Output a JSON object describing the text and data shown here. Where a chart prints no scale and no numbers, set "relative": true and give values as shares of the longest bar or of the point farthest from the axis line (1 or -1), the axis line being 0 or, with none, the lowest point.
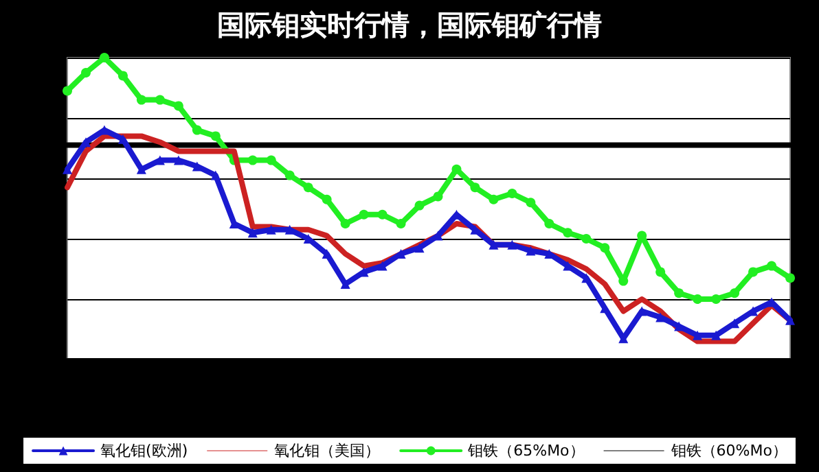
{
  "chart_data": {
    "type": "line",
    "title": "国际钼实时行情，国际钼矿行情",
    "relative": true,
    "grid": "y",
    "legend": "bottom",
    "categories": [
      null,
      null,
      null,
      null,
      null,
      null,
      null,
      null,
      null,
      null,
      null,
      null,
      null,
      null,
      null,
      null,
      null,
      null,
      null,
      null,
      null,
      null,
      null,
      null,
      null,
      null,
      null,
      null,
      null,
      null,
      null,
      null,
      null,
      null,
      null,
      null,
      null,
      null,
      null,
      null
    ],
    "series": [
      {
        "name": "氧化钼(欧洲)",
        "color": "#1a1ad0",
        "marker": "triangle",
        "values": [
          0.63,
          0.72,
          0.76,
          0.73,
          0.63,
          0.66,
          0.66,
          0.64,
          0.61,
          0.45,
          0.42,
          0.43,
          0.43,
          0.4,
          0.35,
          0.25,
          0.29,
          0.31,
          0.35,
          0.37,
          0.41,
          0.48,
          0.43,
          0.38,
          0.38,
          0.36,
          0.35,
          0.31,
          0.27,
          0.17,
          0.07,
          0.16,
          0.14,
          0.11,
          0.08,
          0.08,
          0.12,
          0.16,
          0.19,
          0.13
        ]
      },
      {
        "name": "氧化钼（美国）",
        "color": "#cc2222",
        "marker": "none",
        "values": [
          0.57,
          0.69,
          0.74,
          0.74,
          0.74,
          0.72,
          0.69,
          0.69,
          0.69,
          0.69,
          0.44,
          0.44,
          0.43,
          0.43,
          0.41,
          0.35,
          0.31,
          0.32,
          0.35,
          0.38,
          0.41,
          0.45,
          0.44,
          0.38,
          0.38,
          0.37,
          0.35,
          0.33,
          0.3,
          0.25,
          0.16,
          0.2,
          0.16,
          0.1,
          0.06,
          0.06,
          0.06,
          0.12,
          0.18,
          0.13
        ]
      },
      {
        "name": "钼铁（65%Mo）",
        "color": "#22ee22",
        "marker": "circle",
        "values": [
          0.89,
          0.95,
          1,
          0.94,
          0.86,
          0.86,
          0.84,
          0.76,
          0.74,
          0.66,
          0.66,
          0.66,
          0.61,
          0.57,
          0.53,
          0.45,
          0.48,
          0.48,
          0.45,
          0.51,
          0.54,
          0.63,
          0.57,
          0.53,
          0.55,
          0.52,
          0.45,
          0.42,
          0.4,
          0.37,
          0.26,
          0.41,
          0.29,
          0.22,
          0.2,
          0.2,
          0.22,
          0.29,
          0.31,
          0.27
        ]
      },
      {
        "name": "钼铁（60%Mo）",
        "color": "#000000",
        "marker": "none",
        "values": [
          0.71,
          0.71,
          0.71,
          0.71,
          0.71,
          0.71,
          0.71,
          0.71,
          0.71,
          0.71,
          0.71,
          0.71,
          0.71,
          0.71,
          0.71,
          0.71,
          0.71,
          0.71,
          0.71,
          0.71,
          0.71,
          0.71,
          0.71,
          0.71,
          0.71,
          0.71,
          0.71,
          0.71,
          0.71,
          0.71,
          0.71,
          0.71,
          0.71,
          0.71,
          0.71,
          0.71,
          0.71,
          0.71,
          0.71,
          0.71
        ]
      }
    ]
  }
}
